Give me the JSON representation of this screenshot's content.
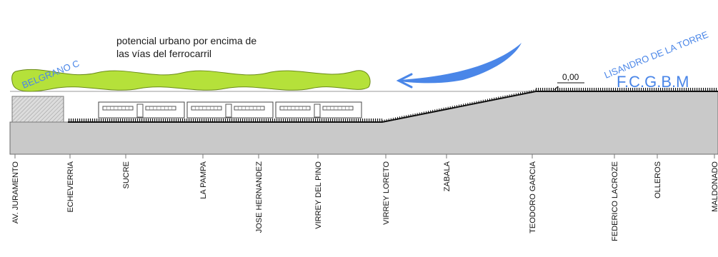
{
  "annotation": {
    "line1": "potencial urbano por encima de",
    "line2": "las vías del ferrocarril"
  },
  "lines": {
    "left": "BELGRANO C",
    "right": "LISANDRO DE LA TORRE",
    "railway": "F.C.G.B.M"
  },
  "elevation": "0,00",
  "stations": [
    "AV. JURAMENTO",
    "ECHEVERRIA",
    "SUCRE",
    "LA PAMPA",
    "JOSE HERNANDEZ",
    "VIRREY DEL PINO",
    "VIRREY LORETO",
    "ZABALA",
    "TEODORO GARCIA",
    "FEDERICO LACROZE",
    "OLLEROS",
    "MALDONADO"
  ],
  "colors": {
    "green_blob": "#b5e13a",
    "blue": "#4a86e8",
    "ground": "#c9c9c9",
    "hatched_block": "#d7d7d7"
  },
  "icons": {
    "arrow": "curved-arrow-left-icon",
    "trains": "train-car-icon"
  }
}
